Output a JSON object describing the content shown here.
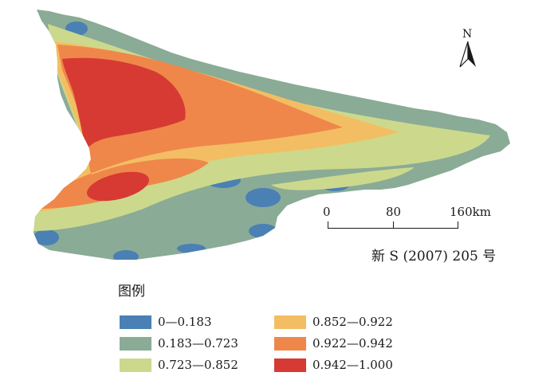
{
  "map": {
    "north_label": "N",
    "scale": {
      "ticks": [
        "0",
        "80",
        "160km"
      ]
    },
    "approval_no": "新 S (2007) 205 号"
  },
  "legend": {
    "title": "图例",
    "items": [
      {
        "label": "0—0.183",
        "color": "#4a80b4"
      },
      {
        "label": "0.183—0.723",
        "color": "#8aab96"
      },
      {
        "label": "0.723—0.852",
        "color": "#ccd98c"
      },
      {
        "label": "0.852—0.922",
        "color": "#f3be63"
      },
      {
        "label": "0.922—0.942",
        "color": "#ef874b"
      },
      {
        "label": "0.942—1.000",
        "color": "#d63a33"
      }
    ]
  }
}
